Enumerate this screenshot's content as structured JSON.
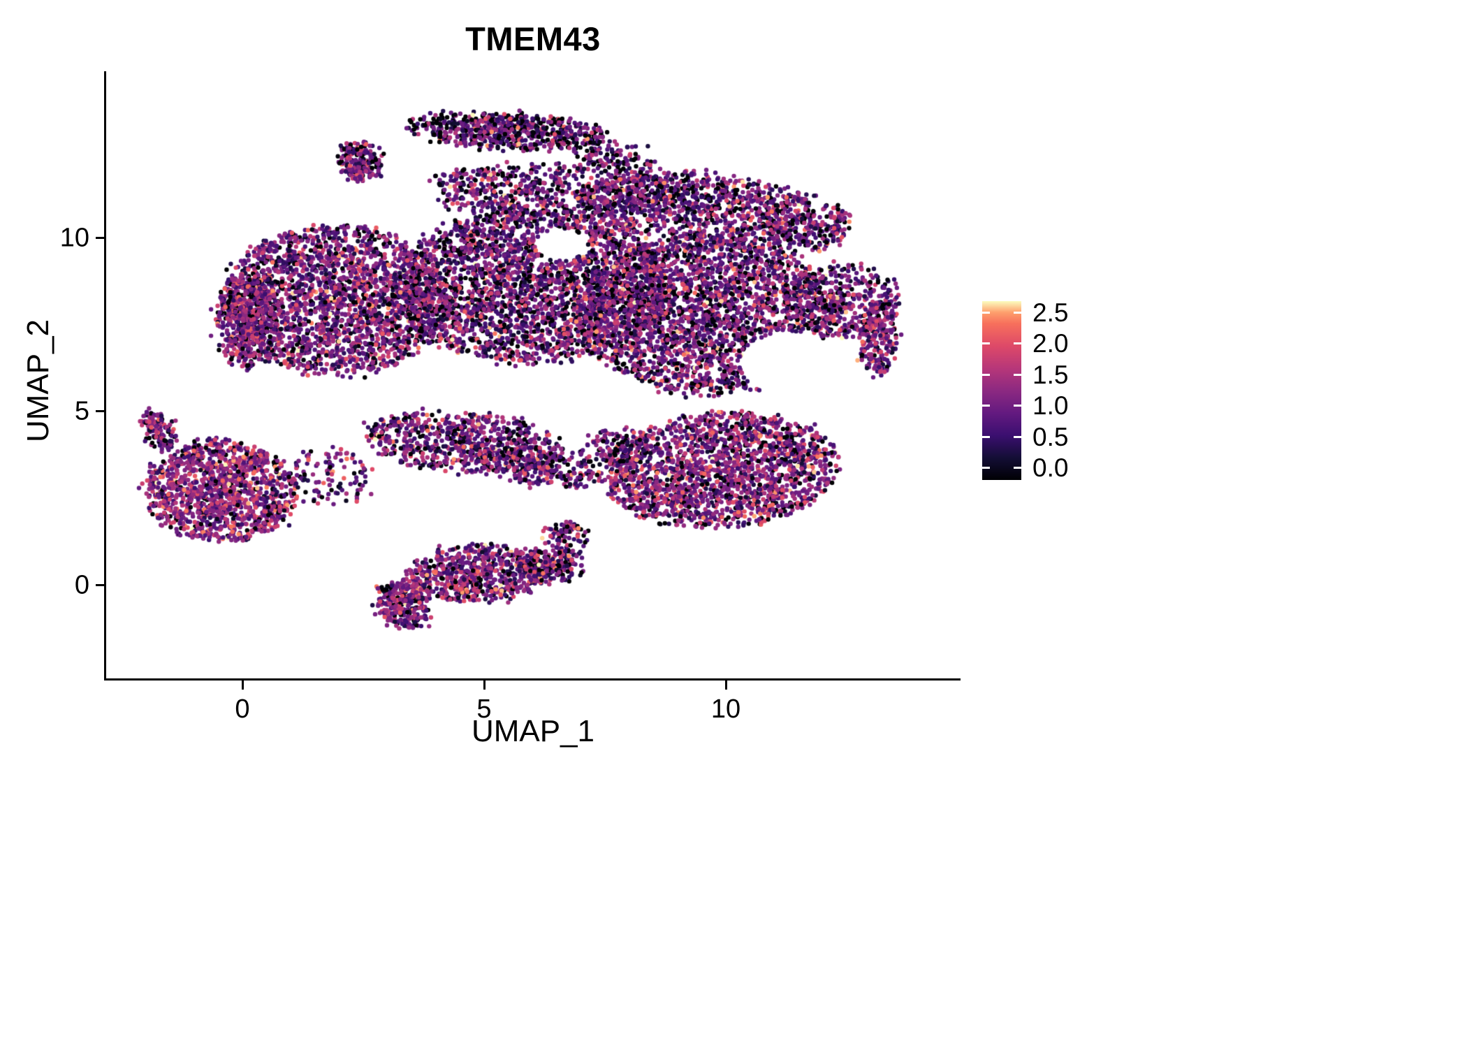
{
  "chart_data": {
    "type": "scatter",
    "title": "TMEM43",
    "xlabel": "UMAP_1",
    "ylabel": "UMAP_2",
    "x_tick_labels": [
      "0",
      "5",
      "10"
    ],
    "x_tick_values": [
      0,
      5,
      10
    ],
    "y_tick_labels": [
      "10",
      "5",
      "0"
    ],
    "y_tick_values": [
      10,
      5,
      0
    ],
    "xlim": [
      -2.8,
      14.8
    ],
    "ylim": [
      -2.7,
      14.7
    ],
    "grid": false,
    "background": "#ffffff",
    "axis_color": "#000000",
    "point_radius_px": 3.2,
    "legend": {
      "position": "right",
      "tick_labels": [
        "2.5",
        "2.0",
        "1.5",
        "1.0",
        "0.5",
        "0.0"
      ],
      "tick_values": [
        2.5,
        2.0,
        1.5,
        1.0,
        0.5,
        0.0
      ],
      "range": [
        0.0,
        2.5
      ],
      "colormap_name": "magma",
      "colormap": [
        {
          "t": 0.0,
          "c": "#000004"
        },
        {
          "t": 0.125,
          "c": "#140e36"
        },
        {
          "t": 0.25,
          "c": "#3b0f70"
        },
        {
          "t": 0.375,
          "c": "#641a80"
        },
        {
          "t": 0.5,
          "c": "#8c2981"
        },
        {
          "t": 0.625,
          "c": "#b73779"
        },
        {
          "t": 0.75,
          "c": "#de4968"
        },
        {
          "t": 0.875,
          "c": "#f7705c"
        },
        {
          "t": 0.9375,
          "c": "#fe9f6d"
        },
        {
          "t": 1.0,
          "c": "#fcfdbf"
        }
      ]
    },
    "clusters": [
      {
        "name": "top-arm",
        "x": 5.5,
        "y": 13.05,
        "rx": 2.05,
        "ry": 0.5,
        "rot": -4,
        "n": 600,
        "mu": 0.85,
        "p0": 0.22
      },
      {
        "name": "top-arm-right-trail",
        "x": 7.6,
        "y": 12.35,
        "rx": 0.9,
        "ry": 0.45,
        "rot": -20,
        "n": 120,
        "mu": 0.9,
        "p0": 0.18
      },
      {
        "name": "top-left-hook",
        "x": 2.45,
        "y": 12.15,
        "rx": 0.42,
        "ry": 0.62,
        "rot": 10,
        "n": 220,
        "mu": 1.0,
        "p0": 0.12
      },
      {
        "name": "upper-band",
        "x": 6.2,
        "y": 11.35,
        "rx": 2.9,
        "ry": 0.75,
        "rot": 0,
        "n": 650,
        "mu": 0.95,
        "p0": 0.14
      },
      {
        "name": "upper-right",
        "x": 9.4,
        "y": 10.9,
        "rx": 2.5,
        "ry": 0.95,
        "rot": -5,
        "n": 950,
        "mu": 0.95,
        "p0": 0.13
      },
      {
        "name": "upper-right-bump",
        "x": 11.7,
        "y": 10.4,
        "rx": 0.85,
        "ry": 0.85,
        "rot": 0,
        "n": 260,
        "mu": 1.0,
        "p0": 0.12
      },
      {
        "name": "main-left",
        "x": 1.9,
        "y": 8.2,
        "rx": 2.3,
        "ry": 2.15,
        "rot": 0,
        "n": 2300,
        "mu": 1.05,
        "p0": 0.1
      },
      {
        "name": "left-edge-dense",
        "x": 0.1,
        "y": 7.6,
        "rx": 0.6,
        "ry": 1.4,
        "rot": 0,
        "n": 450,
        "mu": 1.15,
        "p0": 0.08
      },
      {
        "name": "main-center",
        "x": 6.0,
        "y": 8.6,
        "rx": 2.9,
        "ry": 2.2,
        "rot": 0,
        "n": 2900,
        "mu": 0.95,
        "p0": 0.13
      },
      {
        "name": "main-right",
        "x": 9.6,
        "y": 7.8,
        "rx": 2.6,
        "ry": 2.3,
        "rot": 0,
        "n": 2700,
        "mu": 1.0,
        "p0": 0.12
      },
      {
        "name": "right-protrusion",
        "x": 12.4,
        "y": 8.2,
        "rx": 1.2,
        "ry": 1.05,
        "rot": 0,
        "n": 420,
        "mu": 1.0,
        "p0": 0.12
      },
      {
        "name": "right-edge",
        "x": 13.15,
        "y": 7.1,
        "rx": 0.35,
        "ry": 1.05,
        "rot": 0,
        "n": 230,
        "mu": 1.05,
        "p0": 0.1
      },
      {
        "name": "lower-right-lobe",
        "x": 9.9,
        "y": 3.3,
        "rx": 2.4,
        "ry": 1.65,
        "rot": 8,
        "n": 1900,
        "mu": 1.15,
        "p0": 0.09
      },
      {
        "name": "mid-strand",
        "x": 4.6,
        "y": 4.1,
        "rx": 2.1,
        "ry": 0.85,
        "rot": -8,
        "n": 700,
        "mu": 1.0,
        "p0": 0.12
      },
      {
        "name": "diag-strand",
        "x": 6.1,
        "y": 3.4,
        "rx": 1.3,
        "ry": 0.5,
        "rot": -15,
        "n": 280,
        "mu": 1.0,
        "p0": 0.12
      },
      {
        "name": "bridge",
        "x": 7.8,
        "y": 3.9,
        "rx": 0.8,
        "ry": 0.6,
        "rot": 0,
        "n": 180,
        "mu": 1.0,
        "p0": 0.12
      },
      {
        "name": "left-cluster",
        "x": -0.45,
        "y": 2.7,
        "rx": 1.55,
        "ry": 1.45,
        "rot": -10,
        "n": 1250,
        "mu": 1.2,
        "p0": 0.08
      },
      {
        "name": "left-hook",
        "x": -1.75,
        "y": 4.45,
        "rx": 0.3,
        "ry": 0.6,
        "rot": 15,
        "n": 130,
        "mu": 1.1,
        "p0": 0.1
      },
      {
        "name": "left-sparse-bridge",
        "x": 1.8,
        "y": 3.1,
        "rx": 0.9,
        "ry": 0.8,
        "rot": 0,
        "n": 120,
        "mu": 1.0,
        "p0": 0.12
      },
      {
        "name": "bottom-cluster",
        "x": 4.9,
        "y": 0.35,
        "rx": 1.5,
        "ry": 0.8,
        "rot": 5,
        "n": 700,
        "mu": 1.05,
        "p0": 0.12
      },
      {
        "name": "bottom-tail",
        "x": 3.35,
        "y": -0.55,
        "rx": 0.55,
        "ry": 0.7,
        "rot": 20,
        "n": 320,
        "mu": 1.1,
        "p0": 0.1
      },
      {
        "name": "bottom-right-bit",
        "x": 6.4,
        "y": 0.55,
        "rx": 0.65,
        "ry": 0.5,
        "rot": 0,
        "n": 200,
        "mu": 1.0,
        "p0": 0.12
      },
      {
        "name": "bottom-upper-arm",
        "x": 6.7,
        "y": 1.4,
        "rx": 0.45,
        "ry": 0.45,
        "rot": 0,
        "n": 80,
        "mu": 1.0,
        "p0": 0.12
      }
    ],
    "holes": [
      {
        "x": 11.35,
        "y": 6.35,
        "rx": 1.05,
        "ry": 0.95
      },
      {
        "x": 7.6,
        "y": 5.15,
        "rx": 1.15,
        "ry": 0.6
      },
      {
        "x": 6.6,
        "y": 9.8,
        "rx": 0.55,
        "ry": 0.45
      },
      {
        "x": 3.2,
        "y": 11.3,
        "rx": 0.9,
        "ry": 0.5
      },
      {
        "x": 2.0,
        "y": 5.3,
        "rx": 1.2,
        "ry": 0.55
      },
      {
        "x": 5.4,
        "y": 5.35,
        "rx": 0.6,
        "ry": 0.4
      }
    ]
  }
}
